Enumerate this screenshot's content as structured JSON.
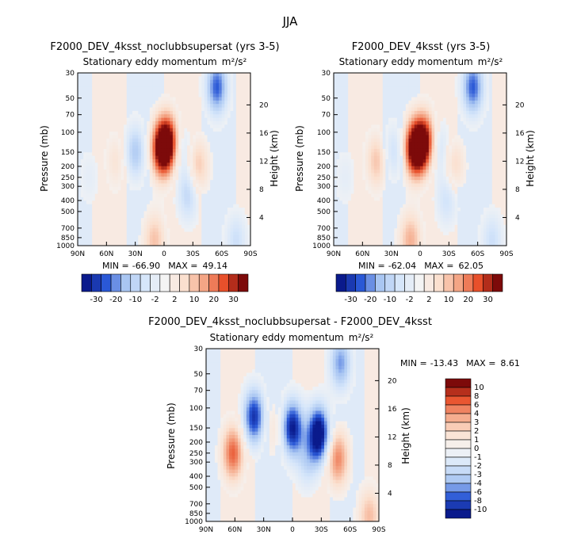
{
  "page_title": "JJA",
  "colors": {
    "neg_strong": "#0a1a8c",
    "neg_mid": "#2a58d6",
    "neg_light": "#a9c6f2",
    "neg_pale": "#d6e6fa",
    "neutral": "#f4f4f4",
    "pos_pale": "#fbe0cf",
    "pos_light": "#f4a585",
    "pos_mid": "#e8502b",
    "pos_strong": "#7d0a0a"
  },
  "chart_data": [
    {
      "type": "heatmap",
      "id": "panel_a",
      "title": "F2000_DEV_4ksst_noclubbsupersat (yrs 3-5)",
      "subtitle": "Stationary eddy momentum",
      "units": "m²/s²",
      "x_ticks": [
        "90N",
        "60N",
        "30N",
        "0",
        "30S",
        "60S",
        "90S"
      ],
      "y_ticks": [
        "30",
        "50",
        "70",
        "100",
        "150",
        "200",
        "250",
        "300",
        "400",
        "500",
        "700",
        "850",
        "1000"
      ],
      "ylabel": "Pressure (mb)",
      "height_ticks": [
        "20",
        "16",
        "12",
        "8",
        "4"
      ],
      "height_label": "Height (km)",
      "stats": {
        "min_label": "MIN =",
        "min": "-66.90",
        "max_label": "MAX =",
        "max": "49.14"
      },
      "colorbar_labels": [
        "-30",
        "-20",
        "-10",
        "-2",
        "2",
        "10",
        "20",
        "30"
      ],
      "features": [
        {
          "lat": 2,
          "p": 140,
          "value": 45
        },
        {
          "lat": -5,
          "p": 120,
          "value": 30
        },
        {
          "lat": 50,
          "p": 180,
          "value": 8
        },
        {
          "lat": 30,
          "p": 150,
          "value": -18
        },
        {
          "lat": -18,
          "p": 140,
          "value": -10
        },
        {
          "lat": -35,
          "p": 200,
          "value": 15
        },
        {
          "lat": -55,
          "p": 40,
          "value": -30
        },
        {
          "lat": -25,
          "p": 350,
          "value": -15
        },
        {
          "lat": 10,
          "p": 900,
          "value": 15
        },
        {
          "lat": 78,
          "p": 250,
          "value": -5
        },
        {
          "lat": -75,
          "p": 900,
          "value": -12
        }
      ]
    },
    {
      "type": "heatmap",
      "id": "panel_b",
      "title": "F2000_DEV_4ksst (yrs 3-5)",
      "subtitle": "Stationary eddy momentum",
      "units": "m²/s²",
      "x_ticks": [
        "90N",
        "60N",
        "30N",
        "0",
        "30S",
        "60S",
        "90S"
      ],
      "y_ticks": [
        "30",
        "50",
        "70",
        "100",
        "150",
        "200",
        "250",
        "300",
        "400",
        "500",
        "700",
        "850",
        "1000"
      ],
      "ylabel": "Pressure (mb)",
      "height_ticks": [
        "20",
        "16",
        "12",
        "8",
        "4"
      ],
      "height_label": "Height (km)",
      "stats": {
        "min_label": "MIN =",
        "min": "-62.04",
        "max_label": "MAX =",
        "max": "62.05"
      },
      "colorbar_labels": [
        "-30",
        "-20",
        "-10",
        "-2",
        "2",
        "10",
        "20",
        "30"
      ],
      "features": [
        {
          "lat": 5,
          "p": 140,
          "value": 50
        },
        {
          "lat": -5,
          "p": 120,
          "value": 35
        },
        {
          "lat": 45,
          "p": 180,
          "value": 15
        },
        {
          "lat": 28,
          "p": 150,
          "value": -12
        },
        {
          "lat": -20,
          "p": 140,
          "value": -12
        },
        {
          "lat": -35,
          "p": 200,
          "value": 12
        },
        {
          "lat": -55,
          "p": 40,
          "value": -30
        },
        {
          "lat": -28,
          "p": 380,
          "value": -12
        },
        {
          "lat": 10,
          "p": 900,
          "value": 18
        },
        {
          "lat": 78,
          "p": 250,
          "value": -5
        },
        {
          "lat": -75,
          "p": 900,
          "value": -12
        }
      ]
    },
    {
      "type": "heatmap",
      "id": "panel_c",
      "title": "F2000_DEV_4ksst_noclubbsupersat - F2000_DEV_4ksst",
      "subtitle": "Stationary eddy momentum",
      "units": "m²/s²",
      "x_ticks": [
        "90N",
        "60N",
        "30N",
        "0",
        "30S",
        "60S",
        "90S"
      ],
      "y_ticks": [
        "30",
        "50",
        "70",
        "100",
        "150",
        "200",
        "250",
        "300",
        "400",
        "500",
        "700",
        "850",
        "1000"
      ],
      "ylabel": "Pressure (mb)",
      "height_ticks": [
        "20",
        "16",
        "12",
        "8",
        "4"
      ],
      "height_label": "Height (km)",
      "stats": {
        "min_label": "MIN =",
        "min": "-13.43",
        "max_label": "MAX =",
        "max": "8.61"
      },
      "colorbar_labels": [
        "10",
        "8",
        "6",
        "4",
        "3",
        "2",
        "1",
        "0",
        "-1",
        "-2",
        "-3",
        "-4",
        "-6",
        "-8",
        "-10"
      ],
      "features": [
        {
          "lat": 62,
          "p": 250,
          "value": 7
        },
        {
          "lat": 40,
          "p": 120,
          "value": -9
        },
        {
          "lat": 0,
          "p": 150,
          "value": -10
        },
        {
          "lat": -27,
          "p": 170,
          "value": -12
        },
        {
          "lat": -47,
          "p": 280,
          "value": 6
        },
        {
          "lat": -50,
          "p": 40,
          "value": -6
        },
        {
          "lat": 20,
          "p": 150,
          "value": 2
        },
        {
          "lat": -15,
          "p": 300,
          "value": -3
        },
        {
          "lat": -80,
          "p": 900,
          "value": 4
        }
      ]
    }
  ]
}
